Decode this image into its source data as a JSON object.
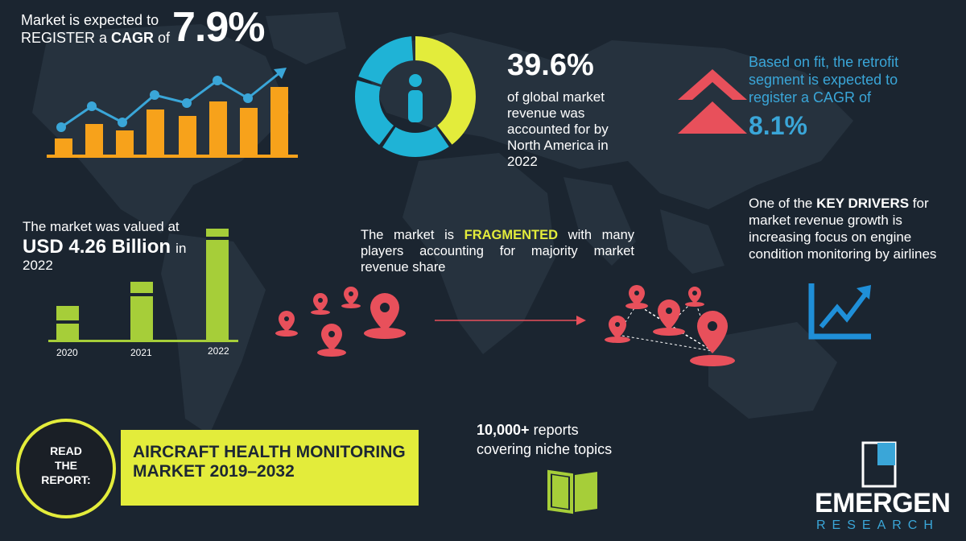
{
  "cagr": {
    "line1": "Market is expected to",
    "line2_prefix": "REGISTER a ",
    "line2_bold": "CAGR",
    "line2_suffix": " of",
    "value": "7.9%"
  },
  "north_america": {
    "value": "39.6%",
    "text": "of global market revenue was accounted for by North America in 2022",
    "share": 39.6
  },
  "retrofit": {
    "text": "Based on fit, the retrofit segment is expected to register a CAGR of",
    "value": "8.1%"
  },
  "market_value": {
    "line1": "The market was valued at",
    "amount": "USD 4.26 Billion",
    "in": "in",
    "year": "2022",
    "years": [
      "2020",
      "2021",
      "2022"
    ]
  },
  "fragmented": {
    "prefix": "The market is ",
    "highlight": "FRAGMENTED",
    "suffix": " with many players accounting for majority market revenue share"
  },
  "drivers": {
    "prefix": "One of the ",
    "bold": "KEY DRIVERS",
    "suffix": " for market revenue growth is increasing focus on engine condition monitoring by airlines"
  },
  "report": {
    "read": "READ",
    "the": "THE",
    "report": "REPORT:",
    "title": "AIRCRAFT HEALTH MONITORING MARKET 2019–2032"
  },
  "reports_count": {
    "bold": "10,000+",
    "line1_suffix": " reports",
    "line2": "covering niche topics"
  },
  "logo": {
    "name": "EMERGEN",
    "sub": "RESEARCH"
  },
  "colors": {
    "background": "#1b2530",
    "yellow": "#e3ec3b",
    "orange": "#f7a21b",
    "blue": "#3aa6d8",
    "red": "#e8505b",
    "green": "#a6ce39",
    "logo_blue": "#3aa6d8"
  },
  "icons": [
    "trend-chart-icon",
    "person-icon",
    "double-chevron-up-icon",
    "map-pin-icon",
    "growth-chart-icon",
    "open-book-icon",
    "emergen-logo-icon"
  ]
}
